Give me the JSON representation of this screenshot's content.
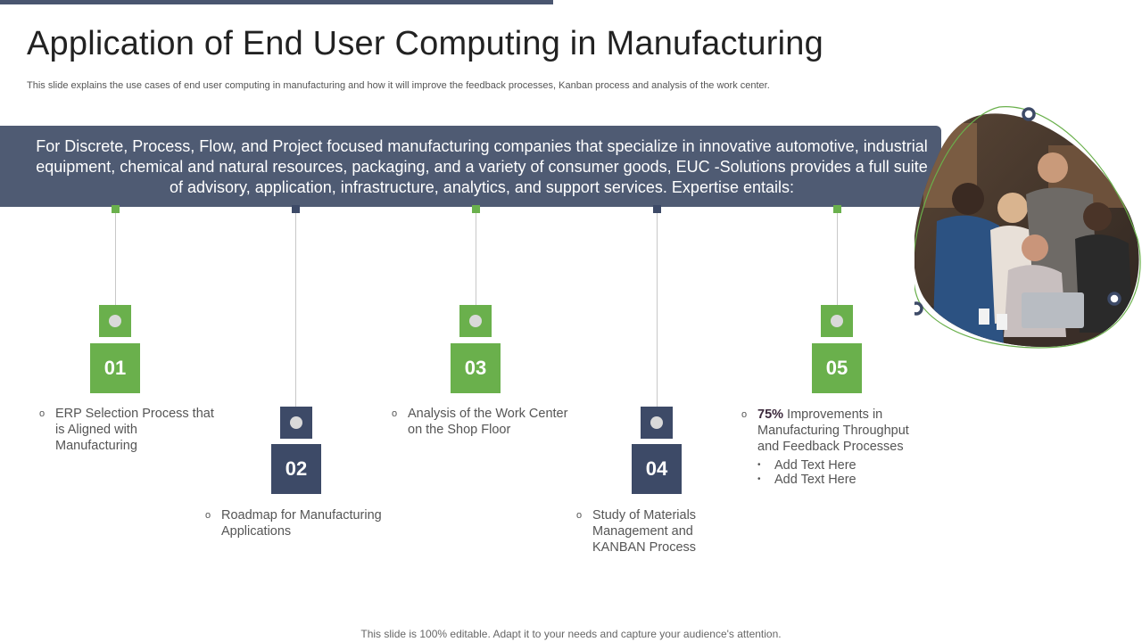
{
  "title": "Application of End User Computing in Manufacturing",
  "subtitle": "This slide explains the use cases of end user computing in manufacturing and how it will improve the feedback processes, Kanban process and analysis of the work center.",
  "banner": "For Discrete, Process, Flow, and Project focused manufacturing companies that specialize in innovative automotive, industrial equipment, chemical and natural resources, packaging, and a variety of consumer goods, EUC -Solutions provides a full suite of advisory, application, infrastructure, analytics, and support services. Expertise entails:",
  "steps": [
    {
      "number": "01",
      "bullet": "o",
      "text": "ERP Selection Process that is Aligned with Manufacturing"
    },
    {
      "number": "02",
      "bullet": "o",
      "text": "Roadmap for Manufacturing Applications"
    },
    {
      "number": "03",
      "bullet": "o",
      "text": "Analysis of the Work Center on the Shop Floor"
    },
    {
      "number": "04",
      "bullet": "o",
      "text": "Study of Materials Management and KANBAN Process"
    },
    {
      "number": "05",
      "bullet": "o",
      "highlight": "75%",
      "text": " Improvements in Manufacturing Throughput and Feedback Processes",
      "subitems": [
        {
          "bullet": "•",
          "text": "Add Text Here"
        },
        {
          "bullet": "•",
          "text": "Add Text Here"
        }
      ]
    }
  ],
  "footer": "This slide is 100% editable. Adapt it to your needs and capture your audience's attention.",
  "colors": {
    "green": "#6ab04c",
    "navy": "#3d4a67",
    "banner": "#4f5b73"
  }
}
